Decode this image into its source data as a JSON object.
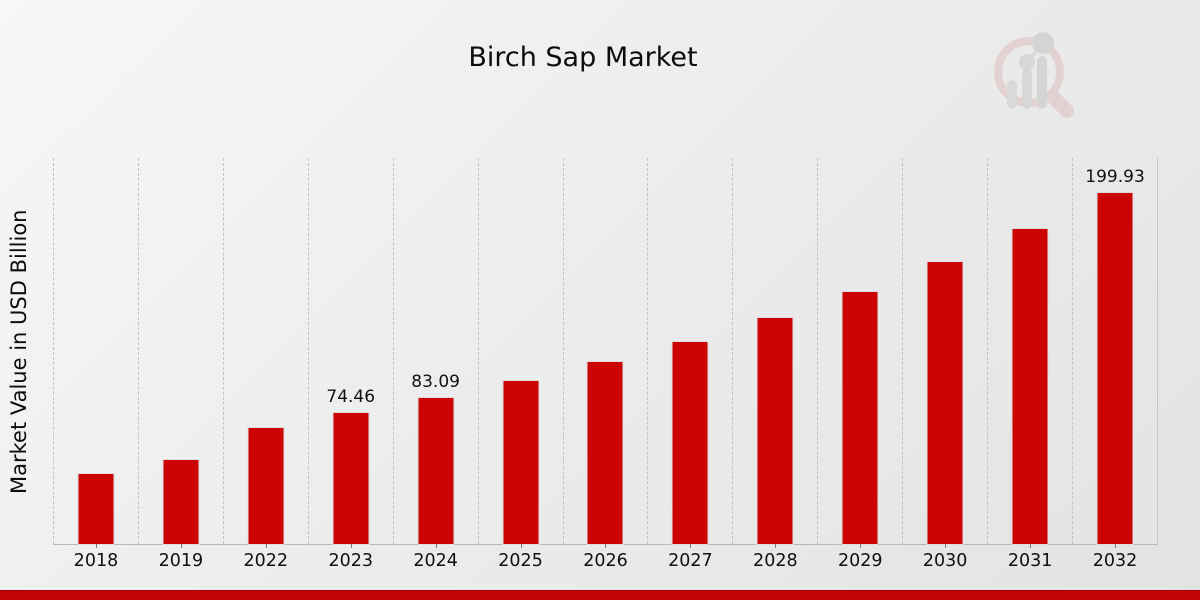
{
  "page": {
    "title": "Birch Sap Market"
  },
  "branding": {
    "watermark_icon": "bar-chart-magnifier-logo",
    "accent_color": "#c10505"
  },
  "chart_data": {
    "type": "bar",
    "title": "Birch Sap Market",
    "xlabel": "",
    "ylabel": "Market Value in USD Billion",
    "categories": [
      "2018",
      "2019",
      "2022",
      "2023",
      "2024",
      "2025",
      "2026",
      "2027",
      "2028",
      "2029",
      "2030",
      "2031",
      "2032"
    ],
    "values": [
      40.0,
      48.0,
      66.3,
      74.46,
      83.09,
      92.9,
      103.5,
      115.4,
      128.6,
      143.4,
      160.9,
      179.3,
      199.93
    ],
    "labeled_points": {
      "2023": "74.46",
      "2024": "83.09",
      "2032": "199.93"
    },
    "bar_color": "#cc0404",
    "ylim": [
      0,
      220.6
    ],
    "grid": "vertical-dashed-only",
    "legend": "none",
    "y_tick_labels": "none"
  }
}
